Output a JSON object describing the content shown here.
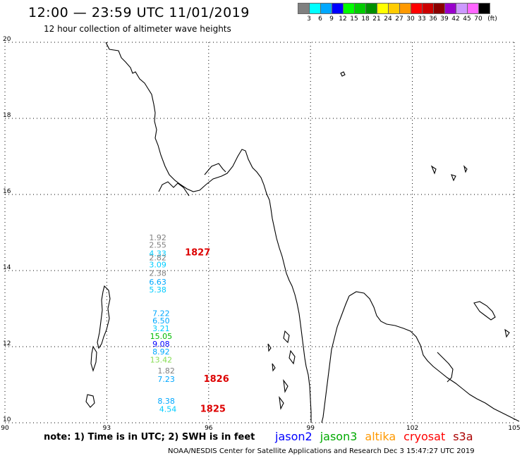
{
  "header": {
    "title": "12:00 — 23:59 UTC 11/01/2019",
    "subtitle": "12 hour collection of altimeter wave heights"
  },
  "legend": {
    "unit": "(ft)",
    "bins": [
      {
        "label": "3",
        "color": "#808080"
      },
      {
        "label": "6",
        "color": "#00ffff"
      },
      {
        "label": "9",
        "color": "#00a8ff"
      },
      {
        "label": "12",
        "color": "#0000ff"
      },
      {
        "label": "15",
        "color": "#00ff00"
      },
      {
        "label": "18",
        "color": "#00cc00"
      },
      {
        "label": "21",
        "color": "#009000"
      },
      {
        "label": "24",
        "color": "#ffff00"
      },
      {
        "label": "27",
        "color": "#ffcc00"
      },
      {
        "label": "30",
        "color": "#ff9900"
      },
      {
        "label": "33",
        "color": "#ff0000"
      },
      {
        "label": "36",
        "color": "#cc0000"
      },
      {
        "label": "39",
        "color": "#8b0000"
      },
      {
        "label": "42",
        "color": "#9900cc"
      },
      {
        "label": "45",
        "color": "#cc99ff"
      },
      {
        "label": "70",
        "color": "#ff66ff"
      },
      {
        "label": "",
        "color": "#000000"
      }
    ]
  },
  "map": {
    "lon_ticks": [
      "90",
      "93",
      "96",
      "99",
      "102",
      "105"
    ],
    "lat_ticks": [
      "20",
      "18",
      "16",
      "14",
      "12",
      "10"
    ],
    "lon_range": [
      90,
      105
    ],
    "lat_range": [
      10,
      20
    ]
  },
  "observations": [
    {
      "text": "1.92",
      "lon": 94.5,
      "lat": 14.8,
      "color": "#808080"
    },
    {
      "text": "2.55",
      "lon": 94.5,
      "lat": 14.6,
      "color": "#808080"
    },
    {
      "text": "4.33",
      "lon": 94.5,
      "lat": 14.38,
      "color": "#00ccff"
    },
    {
      "text": "2.82",
      "lon": 94.5,
      "lat": 14.27,
      "color": "#808080"
    },
    {
      "text": "3.09",
      "lon": 94.5,
      "lat": 14.08,
      "color": "#00ccff"
    },
    {
      "text": "2.38",
      "lon": 94.5,
      "lat": 13.86,
      "color": "#808080"
    },
    {
      "text": "6.63",
      "lon": 94.5,
      "lat": 13.63,
      "color": "#00a8ff"
    },
    {
      "text": "5.38",
      "lon": 94.5,
      "lat": 13.43,
      "color": "#00ccff"
    },
    {
      "text": "7.22",
      "lon": 94.6,
      "lat": 12.81,
      "color": "#00a8ff"
    },
    {
      "text": "6.50",
      "lon": 94.6,
      "lat": 12.61,
      "color": "#00a8ff"
    },
    {
      "text": "3.21",
      "lon": 94.6,
      "lat": 12.41,
      "color": "#00ccff"
    },
    {
      "text": "15.05",
      "lon": 94.6,
      "lat": 12.2,
      "color": "#00bb00"
    },
    {
      "text": "9.08",
      "lon": 94.6,
      "lat": 12.0,
      "color": "#0000ff"
    },
    {
      "text": "8.92",
      "lon": 94.6,
      "lat": 11.8,
      "color": "#00a8ff"
    },
    {
      "text": "13.42",
      "lon": 94.6,
      "lat": 11.58,
      "color": "#88dd55"
    },
    {
      "text": "1.82",
      "lon": 94.75,
      "lat": 11.3,
      "color": "#808080"
    },
    {
      "text": "7.23",
      "lon": 94.75,
      "lat": 11.07,
      "color": "#00a8ff"
    },
    {
      "text": "8.38",
      "lon": 94.75,
      "lat": 10.5,
      "color": "#00a8ff"
    },
    {
      "text": "4.54",
      "lon": 94.8,
      "lat": 10.29,
      "color": "#00ccff"
    }
  ],
  "passes": [
    {
      "text": "1827",
      "lon": 95.3,
      "lat": 14.4,
      "color": "#dd0000"
    },
    {
      "text": "1826",
      "lon": 95.85,
      "lat": 11.07,
      "color": "#dd0000"
    },
    {
      "text": "1825",
      "lon": 95.75,
      "lat": 10.29,
      "color": "#dd0000"
    }
  ],
  "footer": {
    "note": "note: 1) Time is in UTC; 2) SWH is in feet",
    "satellites": [
      {
        "name": "jason2",
        "color": "#0000ff"
      },
      {
        "name": "jason3",
        "color": "#00aa00"
      },
      {
        "name": "altika",
        "color": "#ff9900"
      },
      {
        "name": "cryosat",
        "color": "#ff0000"
      },
      {
        "name": "s3a",
        "color": "#aa0000"
      }
    ],
    "credit": "NOAA/NESDIS Center for Satellite Applications and Research    Dec  3 15:47:27 UTC 2019"
  }
}
